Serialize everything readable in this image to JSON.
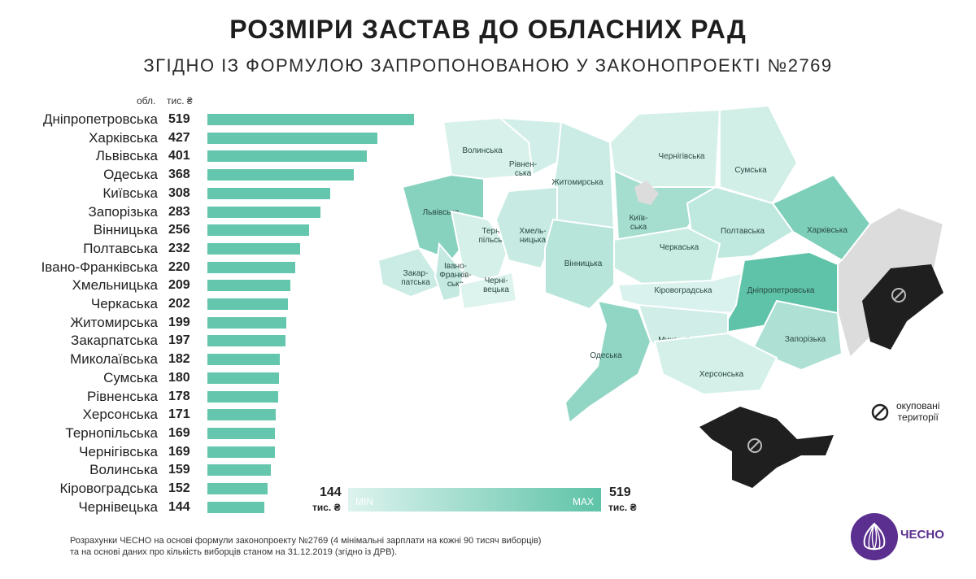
{
  "header": {
    "title": "РОЗМІРИ ЗАСТАВ ДО ОБЛАСНИХ РАД",
    "subtitle": "ЗГІДНО ІЗ ФОРМУЛОЮ ЗАПРОПОНОВАНОЮ У ЗАКОНОПРОЕКТІ №2769"
  },
  "columns": {
    "region": "обл.",
    "unit": "тис. ₴"
  },
  "chart_data": {
    "type": "bar",
    "orientation": "horizontal",
    "categories": [
      "Дніпропетровська",
      "Харківська",
      "Львівська",
      "Одеська",
      "Київська",
      "Запорізька",
      "Вінницька",
      "Полтавська",
      "Івано-Франківська",
      "Хмельницька",
      "Черкаська",
      "Житомирська",
      "Закарпатська",
      "Миколаївська",
      "Сумська",
      "Рівненська",
      "Херсонська",
      "Тернопільська",
      "Чернігівська",
      "Волинська",
      "Кіровоградська",
      "Чернівецька"
    ],
    "values": [
      519,
      427,
      401,
      368,
      308,
      283,
      256,
      232,
      220,
      209,
      202,
      199,
      197,
      182,
      180,
      178,
      171,
      169,
      169,
      159,
      152,
      144
    ],
    "title": "РОЗМІРИ ЗАСТАВ ДО ОБЛАСНИХ РАД",
    "xlabel": "тис. ₴",
    "ylabel": "обл.",
    "xlim": [
      0,
      519
    ],
    "bar_color": "#63c6ad"
  },
  "map": {
    "regions": [
      {
        "name": "Волинська",
        "value": 159
      },
      {
        "name": "Рівнен-ська",
        "value": 178
      },
      {
        "name": "Житомирська",
        "value": 199
      },
      {
        "name": "Чернігівська",
        "value": 169
      },
      {
        "name": "Сумська",
        "value": 180
      },
      {
        "name": "Львівська",
        "value": 401
      },
      {
        "name": "Київ-ська",
        "value": 308
      },
      {
        "name": "Терно-пільська",
        "value": 169
      },
      {
        "name": "Хмель-ницька",
        "value": 209
      },
      {
        "name": "Полтавська",
        "value": 232
      },
      {
        "name": "Харківська",
        "value": 427
      },
      {
        "name": "Черкаська",
        "value": 202
      },
      {
        "name": "Закар-патська",
        "value": 197
      },
      {
        "name": "Івано-Франків-ська",
        "value": 220
      },
      {
        "name": "Вінницька",
        "value": 256
      },
      {
        "name": "Черні-вецька",
        "value": 144
      },
      {
        "name": "Кіровоградська",
        "value": 152
      },
      {
        "name": "Дніпропетровська",
        "value": 519
      },
      {
        "name": "Миколаївська",
        "value": 182
      },
      {
        "name": "Одеська",
        "value": 368
      },
      {
        "name": "Запорізька",
        "value": 283
      },
      {
        "name": "Херсонська",
        "value": 171
      }
    ],
    "min_color": "#ddf3ee",
    "max_color": "#5ec3a8",
    "occupied_color": "#1f1f1f",
    "no_data_color": "#dcdcdc"
  },
  "legend": {
    "min_value": "144",
    "max_value": "519",
    "min_unit": "тис. ₴",
    "max_unit": "тис. ₴",
    "min_label": "MIN",
    "max_label": "MAX",
    "occupied_label_1": "окуповані",
    "occupied_label_2": "території"
  },
  "footnote": {
    "line1": "Розрахунки ЧЕСНО на основі формули законопроекту №2769 (4 мінімальні зарплати на кожні 90 тисяч виборців)",
    "line2": "та на основі даних про кількість виборців станом на 31.12.2019 (згідно із ДРВ)."
  },
  "brand": {
    "name": "ЧЕСНО",
    "color": "#5a2f8f"
  }
}
